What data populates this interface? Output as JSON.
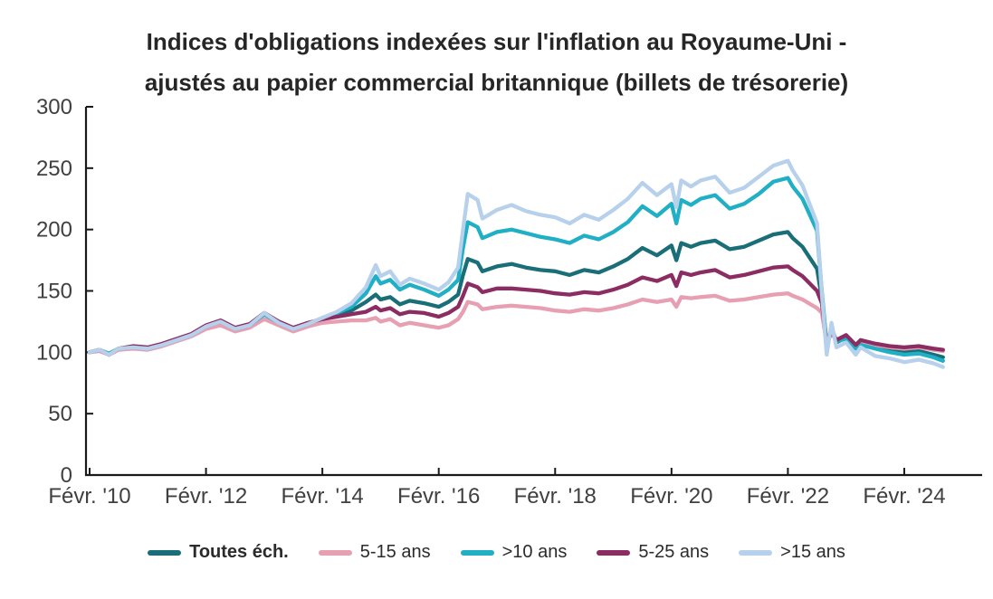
{
  "title": {
    "line1": "Indices d'obligations indexées sur l'inflation au Royaume-Uni -",
    "line2": "ajustés au papier commercial britannique (billets de trésorerie)"
  },
  "colors": {
    "axis": "#1a1a1a",
    "tick_label": "#404040",
    "title_text": "#262626",
    "series_toutes_ech": "#1A6E78",
    "series_5_15_ans": "#E6A0B2",
    "series_gt10_ans": "#20AFC5",
    "series_5_25_ans": "#8B2D62",
    "series_gt15_ans": "#B7D0EB"
  },
  "chart_data": {
    "type": "line",
    "title": "Indices d'obligations indexées sur l'inflation au Royaume-Uni - ajustés au papier commercial britannique (billets de trésorerie)",
    "xlabel": "",
    "ylabel": "",
    "grid": false,
    "legend_position": "bottom",
    "ylim": [
      0,
      300
    ],
    "y_ticks": [
      0,
      50,
      100,
      150,
      200,
      250,
      300
    ],
    "x_unit": "months since Feb 2010",
    "x_tick_months": [
      0,
      24,
      48,
      72,
      96,
      120,
      144,
      168
    ],
    "x_tick_labels": [
      "Févr. '10",
      "Févr. '12",
      "Févr. '14",
      "Févr. '16",
      "Févr. '18",
      "Févr. '20",
      "Févr. '22",
      "Févr. '24"
    ],
    "x": [
      0,
      2,
      4,
      6,
      9,
      12,
      15,
      18,
      21,
      24,
      27,
      30,
      33,
      36,
      39,
      42,
      45,
      48,
      51,
      54,
      57,
      59,
      60,
      62,
      64,
      66,
      69,
      72,
      74,
      76,
      77,
      78,
      80,
      81,
      84,
      87,
      90,
      93,
      96,
      99,
      102,
      105,
      108,
      111,
      114,
      117,
      120,
      121,
      122,
      124,
      126,
      129,
      132,
      135,
      138,
      141,
      144,
      145,
      147,
      150,
      151,
      152,
      153,
      154,
      156,
      158,
      159,
      162,
      165,
      168,
      171,
      174,
      176
    ],
    "series": [
      {
        "name": "Toutes éch.",
        "emphasis": true,
        "color": "#1A6E78",
        "values": [
          100,
          102,
          98,
          103,
          104,
          103,
          106,
          110,
          114,
          121,
          125,
          119,
          122,
          131,
          124,
          119,
          123,
          127,
          130,
          134,
          141,
          147,
          143,
          145,
          139,
          142,
          140,
          137,
          141,
          147,
          163,
          176,
          173,
          166,
          170,
          172,
          169,
          167,
          166,
          163,
          167,
          165,
          170,
          176,
          185,
          179,
          187,
          175,
          189,
          186,
          189,
          191,
          184,
          186,
          191,
          196,
          198,
          193,
          186,
          168,
          144,
          105,
          118,
          108,
          112,
          104,
          108,
          104,
          101,
          100,
          101,
          98,
          96
        ]
      },
      {
        "name": "5-15 ans",
        "emphasis": false,
        "color": "#E6A0B2",
        "values": [
          100,
          101,
          98,
          102,
          103,
          102,
          105,
          109,
          113,
          119,
          122,
          117,
          120,
          127,
          122,
          117,
          121,
          124,
          125,
          126,
          126,
          128,
          125,
          127,
          122,
          124,
          122,
          120,
          122,
          127,
          133,
          141,
          139,
          135,
          137,
          138,
          137,
          136,
          134,
          133,
          135,
          134,
          136,
          139,
          143,
          141,
          143,
          137,
          145,
          144,
          145,
          146,
          142,
          143,
          145,
          147,
          148,
          146,
          143,
          136,
          132,
          107,
          116,
          109,
          113,
          105,
          109,
          106,
          104,
          103,
          104,
          102,
          101
        ]
      },
      {
        "name": ">10 ans",
        "emphasis": false,
        "color": "#20AFC5",
        "values": [
          100,
          102,
          99,
          103,
          104,
          103,
          106,
          110,
          114,
          121,
          125,
          119,
          122,
          131,
          124,
          119,
          123,
          128,
          132,
          137,
          148,
          162,
          156,
          159,
          151,
          155,
          151,
          146,
          151,
          159,
          185,
          206,
          202,
          193,
          198,
          200,
          197,
          194,
          192,
          189,
          195,
          192,
          198,
          206,
          219,
          211,
          221,
          205,
          224,
          220,
          225,
          228,
          217,
          221,
          229,
          239,
          242,
          235,
          225,
          199,
          150,
          106,
          120,
          109,
          111,
          103,
          106,
          103,
          100,
          98,
          99,
          96,
          93
        ]
      },
      {
        "name": "5-25 ans",
        "emphasis": false,
        "color": "#8B2D62",
        "values": [
          100,
          102,
          98,
          103,
          105,
          104,
          107,
          111,
          115,
          122,
          126,
          120,
          123,
          132,
          125,
          120,
          124,
          127,
          129,
          131,
          133,
          137,
          134,
          136,
          131,
          133,
          132,
          129,
          132,
          137,
          146,
          156,
          153,
          149,
          152,
          152,
          151,
          150,
          148,
          147,
          149,
          148,
          151,
          155,
          161,
          158,
          163,
          154,
          165,
          163,
          165,
          167,
          161,
          163,
          166,
          169,
          170,
          167,
          162,
          150,
          140,
          106,
          117,
          110,
          114,
          106,
          110,
          107,
          105,
          104,
          105,
          103,
          102
        ]
      },
      {
        "name": ">15 ans",
        "emphasis": false,
        "color": "#B7D0EB",
        "values": [
          100,
          102,
          98,
          103,
          104,
          103,
          106,
          110,
          114,
          121,
          125,
          119,
          122,
          132,
          124,
          119,
          123,
          128,
          133,
          140,
          153,
          171,
          162,
          166,
          155,
          160,
          156,
          151,
          157,
          169,
          200,
          229,
          224,
          209,
          216,
          220,
          215,
          212,
          210,
          205,
          212,
          208,
          216,
          225,
          238,
          228,
          237,
          218,
          240,
          235,
          240,
          243,
          230,
          234,
          243,
          252,
          256,
          248,
          236,
          205,
          148,
          98,
          124,
          104,
          108,
          98,
          104,
          97,
          95,
          92,
          94,
          91,
          88
        ]
      }
    ]
  }
}
